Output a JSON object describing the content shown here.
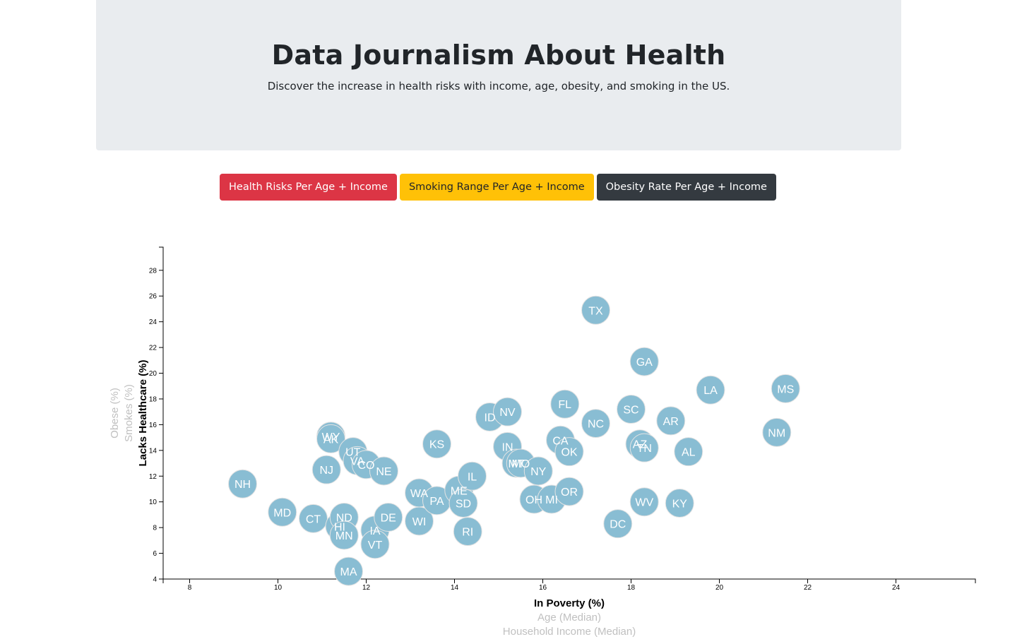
{
  "header": {
    "title": "Data Journalism About Health",
    "subtitle": "Discover the increase in health risks with income, age, obesity, and smoking in the US."
  },
  "buttons": {
    "health": "Health Risks Per Age + Income",
    "smoking": "Smoking Range Per Age + Income",
    "obesity": "Obesity Rate Per Age + Income"
  },
  "colors": {
    "circle": "#89bdd3",
    "danger": "#dc3545",
    "warning": "#ffc107",
    "dark": "#343a40"
  },
  "chart_data": {
    "type": "scatter",
    "x_labels": [
      "In Poverty (%)",
      "Age (Median)",
      "Household Income (Median)"
    ],
    "x_active": "In Poverty (%)",
    "y_labels": [
      "Lacks Healthcare (%)",
      "Smokes (%)",
      "Obese (%)"
    ],
    "y_active": "Lacks Healthcare (%)",
    "xlim": [
      7.4,
      25.8
    ],
    "ylim": [
      4,
      29.8
    ],
    "x_ticks": [
      8,
      10,
      12,
      14,
      16,
      18,
      20,
      22,
      24
    ],
    "y_ticks": [
      4,
      6,
      8,
      10,
      12,
      14,
      16,
      18,
      20,
      22,
      24,
      26,
      28
    ],
    "grid": false,
    "points": [
      {
        "abbr": "NH",
        "x": 9.2,
        "y": 11.4
      },
      {
        "abbr": "MD",
        "x": 10.1,
        "y": 9.2
      },
      {
        "abbr": "CT",
        "x": 10.8,
        "y": 8.7
      },
      {
        "abbr": "NJ",
        "x": 11.1,
        "y": 12.5
      },
      {
        "abbr": "WY",
        "x": 11.2,
        "y": 15.1
      },
      {
        "abbr": "AK",
        "x": 11.2,
        "y": 14.9
      },
      {
        "abbr": "HI",
        "x": 11.4,
        "y": 8.1
      },
      {
        "abbr": "ND",
        "x": 11.5,
        "y": 8.8
      },
      {
        "abbr": "MN",
        "x": 11.5,
        "y": 7.4
      },
      {
        "abbr": "MA",
        "x": 11.6,
        "y": 4.6
      },
      {
        "abbr": "UT",
        "x": 11.7,
        "y": 13.9
      },
      {
        "abbr": "VA",
        "x": 11.8,
        "y": 13.2
      },
      {
        "abbr": "CO",
        "x": 12.0,
        "y": 12.9
      },
      {
        "abbr": "IA",
        "x": 12.2,
        "y": 7.8
      },
      {
        "abbr": "VT",
        "x": 12.2,
        "y": 6.7
      },
      {
        "abbr": "NE",
        "x": 12.4,
        "y": 12.4
      },
      {
        "abbr": "DE",
        "x": 12.5,
        "y": 8.8
      },
      {
        "abbr": "WA",
        "x": 13.2,
        "y": 10.7
      },
      {
        "abbr": "WI",
        "x": 13.2,
        "y": 8.5
      },
      {
        "abbr": "KS",
        "x": 13.6,
        "y": 14.5
      },
      {
        "abbr": "PA",
        "x": 13.6,
        "y": 10.1
      },
      {
        "abbr": "ME",
        "x": 14.1,
        "y": 10.9
      },
      {
        "abbr": "IL",
        "x": 14.4,
        "y": 12.0
      },
      {
        "abbr": "SD",
        "x": 14.2,
        "y": 9.9
      },
      {
        "abbr": "RI",
        "x": 14.3,
        "y": 7.7
      },
      {
        "abbr": "ID",
        "x": 14.8,
        "y": 16.6
      },
      {
        "abbr": "NV",
        "x": 15.2,
        "y": 17.0
      },
      {
        "abbr": "IN",
        "x": 15.2,
        "y": 14.3
      },
      {
        "abbr": "MT",
        "x": 15.4,
        "y": 13.0
      },
      {
        "abbr": "MO",
        "x": 15.5,
        "y": 13.0
      },
      {
        "abbr": "NY",
        "x": 15.9,
        "y": 12.4
      },
      {
        "abbr": "OH",
        "x": 15.8,
        "y": 10.2
      },
      {
        "abbr": "MI",
        "x": 16.2,
        "y": 10.2
      },
      {
        "abbr": "CA",
        "x": 16.4,
        "y": 14.8
      },
      {
        "abbr": "FL",
        "x": 16.5,
        "y": 17.6
      },
      {
        "abbr": "OK",
        "x": 16.6,
        "y": 13.9
      },
      {
        "abbr": "OR",
        "x": 16.6,
        "y": 10.8
      },
      {
        "abbr": "TX",
        "x": 17.2,
        "y": 24.9
      },
      {
        "abbr": "NC",
        "x": 17.2,
        "y": 16.1
      },
      {
        "abbr": "DC",
        "x": 17.7,
        "y": 8.3
      },
      {
        "abbr": "SC",
        "x": 18.0,
        "y": 17.2
      },
      {
        "abbr": "AZ",
        "x": 18.2,
        "y": 14.5
      },
      {
        "abbr": "TN",
        "x": 18.3,
        "y": 14.2
      },
      {
        "abbr": "GA",
        "x": 18.3,
        "y": 20.9
      },
      {
        "abbr": "WV",
        "x": 18.3,
        "y": 10.0
      },
      {
        "abbr": "AR",
        "x": 18.9,
        "y": 16.3
      },
      {
        "abbr": "KY",
        "x": 19.1,
        "y": 9.9
      },
      {
        "abbr": "AL",
        "x": 19.3,
        "y": 13.9
      },
      {
        "abbr": "LA",
        "x": 19.8,
        "y": 18.7
      },
      {
        "abbr": "NM",
        "x": 21.3,
        "y": 15.4
      },
      {
        "abbr": "MS",
        "x": 21.5,
        "y": 18.8
      }
    ]
  }
}
